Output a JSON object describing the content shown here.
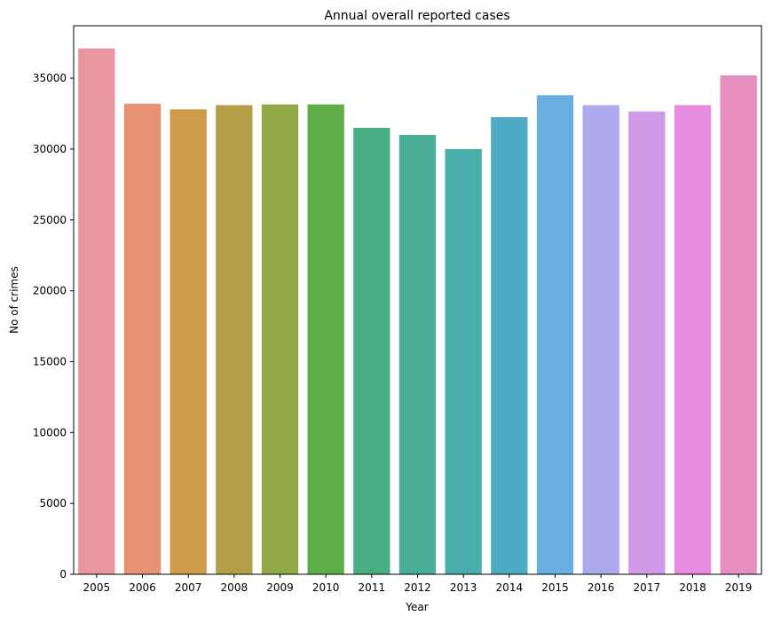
{
  "chart_data": {
    "type": "bar",
    "title": "Annual overall reported cases",
    "xlabel": "Year",
    "ylabel": "No of crimes",
    "categories": [
      "2005",
      "2006",
      "2007",
      "2008",
      "2009",
      "2010",
      "2011",
      "2012",
      "2013",
      "2014",
      "2015",
      "2016",
      "2017",
      "2018",
      "2019"
    ],
    "values": [
      37100,
      33200,
      32800,
      33100,
      33150,
      33150,
      31500,
      31000,
      30000,
      32250,
      33800,
      33100,
      32650,
      33100,
      35200
    ],
    "colors": [
      "#e8969f",
      "#e59372",
      "#cc9c4a",
      "#b29f47",
      "#93a945",
      "#60ae49",
      "#49ae83",
      "#4aad95",
      "#4aaeab",
      "#4eabc5",
      "#6baee1",
      "#aea8ed",
      "#d19ae8",
      "#e68bdd",
      "#e78fbf"
    ],
    "ylim": [
      0,
      38700
    ],
    "yticks": [
      0,
      5000,
      10000,
      15000,
      20000,
      25000,
      30000,
      35000
    ],
    "grid": false,
    "legend": "none"
  }
}
